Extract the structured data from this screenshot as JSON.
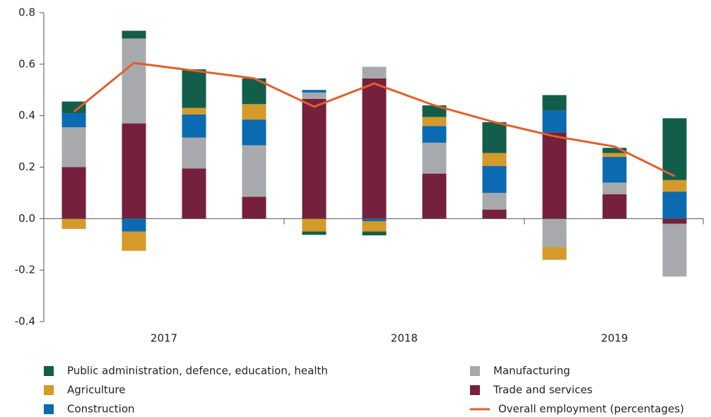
{
  "chart_data": {
    "type": "bar",
    "stacked": true,
    "categories": [
      "2017",
      null,
      null,
      null,
      "2018",
      null,
      null,
      null,
      "2019",
      null,
      null
    ],
    "ylim": [
      -0.4,
      0.8
    ],
    "yticks": [
      -0.4,
      -0.2,
      {
        "value": 0,
        "label": "0.0"
      },
      0.2,
      0.4,
      0.6,
      0.8
    ],
    "series": [
      {
        "name": "Trade and services",
        "color": "#75203c",
        "values": [
          0.2,
          0.37,
          0.195,
          0.085,
          0.465,
          0.545,
          0.175,
          0.035,
          0.335,
          0.095,
          -0.02
        ]
      },
      {
        "name": "Manufacturing",
        "color": "#a7a9ac",
        "values": [
          0.155,
          0.33,
          0.12,
          0.2,
          0.025,
          0.045,
          0.12,
          0.065,
          -0.11,
          0.045,
          -0.205
        ]
      },
      {
        "name": "Construction",
        "color": "#0b6bb0",
        "values": [
          0.055,
          -0.05,
          0.09,
          0.1,
          0.01,
          -0.01,
          0.065,
          0.105,
          0.085,
          0.1,
          0.105
        ]
      },
      {
        "name": "Agriculture",
        "color": "#d49a2a",
        "values": [
          -0.04,
          -0.075,
          0.025,
          0.06,
          -0.05,
          -0.04,
          0.035,
          0.05,
          -0.05,
          0.015,
          0.045
        ]
      },
      {
        "name": "Public administration, defence, education, health",
        "color": "#135e4b",
        "values": [
          0.045,
          0.03,
          0.15,
          0.1,
          -0.013,
          -0.015,
          0.045,
          0.12,
          0.06,
          0.02,
          0.24
        ]
      },
      {
        "name": "Overall employment (percentages)",
        "type": "line",
        "color": "#e0602a",
        "values": [
          0.415,
          0.605,
          0.575,
          0.545,
          0.435,
          0.525,
          0.44,
          0.375,
          0.32,
          0.28,
          0.165
        ]
      }
    ]
  }
}
